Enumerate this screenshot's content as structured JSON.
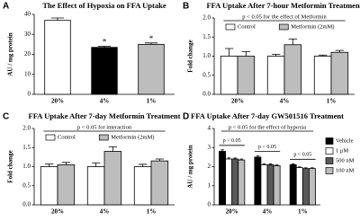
{
  "chart_data": [
    {
      "type": "bar",
      "label": "A",
      "title": "The Effect of Hypoxia on FFA Uptake",
      "y_label": "AU / mg protein",
      "categories": [
        "20%",
        "4%",
        "1%"
      ],
      "values": [
        37,
        23.5,
        25
      ],
      "errors": [
        1.2,
        0.6,
        0.7
      ],
      "colors": [
        "#ffffff",
        "#000000",
        "#bdbdbd"
      ],
      "significance": [
        null,
        "*",
        "*"
      ],
      "ylim": [
        0,
        40
      ],
      "yticks": [
        0,
        10,
        20,
        30,
        40
      ]
    },
    {
      "type": "bar",
      "label": "B",
      "title": "FFA Uptake After 7-hour Metformin Treatment",
      "y_label": "Fold change",
      "annotation": "p < 0.05 for the effect of Metformin",
      "categories": [
        "20%",
        "4%",
        "1%"
      ],
      "series": [
        {
          "name": "Control",
          "color": "#ffffff",
          "values": [
            1.0,
            1.0,
            1.0
          ],
          "errors": [
            0.2,
            0.05,
            0.03
          ]
        },
        {
          "name": "Metformin (2mM)",
          "color": "#bdbdbd",
          "values": [
            1.0,
            1.3,
            1.1
          ],
          "errors": [
            0.12,
            0.15,
            0.05
          ]
        }
      ],
      "ylim": [
        0,
        2
      ],
      "yticks": [
        {
          "value": 0,
          "label": "0.0"
        },
        {
          "value": 0.5,
          "label": "0.5"
        },
        {
          "value": 1,
          "label": "1.0"
        },
        {
          "value": 1.5,
          "label": "1.5"
        },
        {
          "value": 2,
          "label": "2.0"
        }
      ]
    },
    {
      "type": "bar",
      "label": "C",
      "title": "FFA Uptake After 7-day Metformin Treatment",
      "y_label": "Fold change",
      "annotation": "p < 0.05 for interaction",
      "categories": [
        "20%",
        "4%",
        "1%"
      ],
      "series": [
        {
          "name": "Control",
          "color": "#ffffff",
          "values": [
            1.0,
            1.0,
            1.0
          ],
          "errors": [
            0.07,
            0.1,
            0.06
          ]
        },
        {
          "name": "Metformin (2mM)",
          "color": "#bdbdbd",
          "values": [
            1.05,
            1.4,
            1.15
          ],
          "errors": [
            0.06,
            0.12,
            0.05
          ]
        }
      ],
      "ylim": [
        0,
        2
      ],
      "yticks": [
        {
          "value": 0,
          "label": "0.0"
        },
        {
          "value": 0.5,
          "label": "0.5"
        },
        {
          "value": 1,
          "label": "1.0"
        },
        {
          "value": 1.5,
          "label": "1.5"
        },
        {
          "value": 2,
          "label": "2.0"
        }
      ]
    },
    {
      "type": "bar",
      "label": "D",
      "title": "FFA Uptake After 7-day GW501516 Treatment",
      "y_label": "AU / mg protein",
      "annotation": "p < 0.05 for the effect of hypoxia",
      "category_annotations": [
        "p < 0.05",
        "p < 0.05",
        "p < 0.05"
      ],
      "categories": [
        "20%",
        "4%",
        "1%"
      ],
      "series": [
        {
          "name": "Vehicle",
          "color": "#000000",
          "values": [
            2.8,
            2.5,
            2.1
          ],
          "errors": [
            0.08,
            0.06,
            0.05
          ]
        },
        {
          "name": "1 μM",
          "color": "#ffffff",
          "values": [
            2.4,
            2.1,
            1.95
          ],
          "errors": [
            0.06,
            0.05,
            0.04
          ]
        },
        {
          "name": "500 nM",
          "color": "#595959",
          "values": [
            2.4,
            2.1,
            1.9
          ],
          "errors": [
            0.05,
            0.05,
            0.04
          ]
        },
        {
          "name": "100 nM",
          "color": "#bdbdbd",
          "values": [
            2.35,
            2.05,
            1.9
          ],
          "errors": [
            0.05,
            0.05,
            0.04
          ]
        }
      ],
      "ylim": [
        0,
        4
      ],
      "yticks": [
        0,
        1,
        2,
        3,
        4
      ]
    }
  ]
}
